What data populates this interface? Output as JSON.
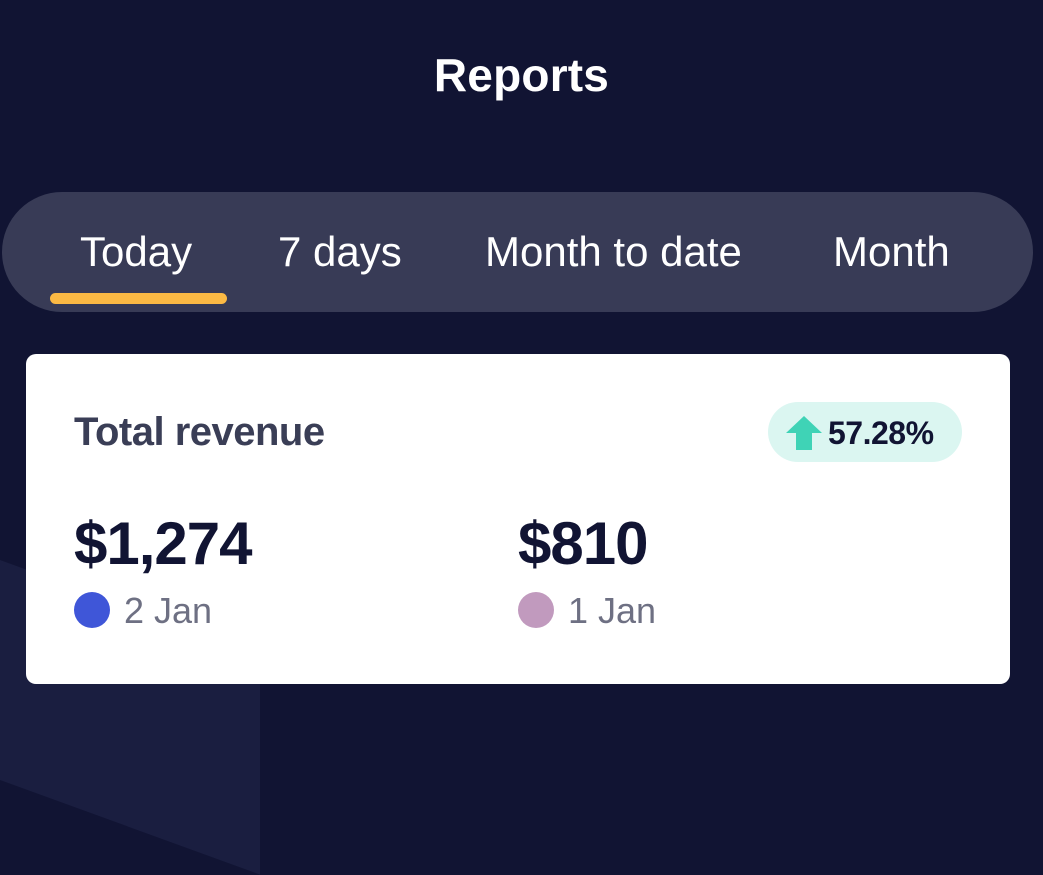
{
  "header": {
    "title": "Reports"
  },
  "tabs": [
    {
      "label": "Today",
      "active": true
    },
    {
      "label": "7 days",
      "active": false
    },
    {
      "label": "Month to date",
      "active": false
    },
    {
      "label": "Month",
      "active": false
    }
  ],
  "revenue_card": {
    "title": "Total revenue",
    "change": {
      "value": "57.28%",
      "direction": "up",
      "icon": "arrow-up-icon",
      "color": "#3fd3b6"
    },
    "current": {
      "amount": "$1,274",
      "date": "2 Jan",
      "color": "#3f56d8"
    },
    "previous": {
      "amount": "$810",
      "date": "1 Jan",
      "color": "#c19abe"
    }
  },
  "colors": {
    "background": "#111433",
    "tab_bar": "#383b56",
    "active_tab_indicator": "#fbb944",
    "card": "#ffffff",
    "badge_background": "#dbf6f1"
  }
}
